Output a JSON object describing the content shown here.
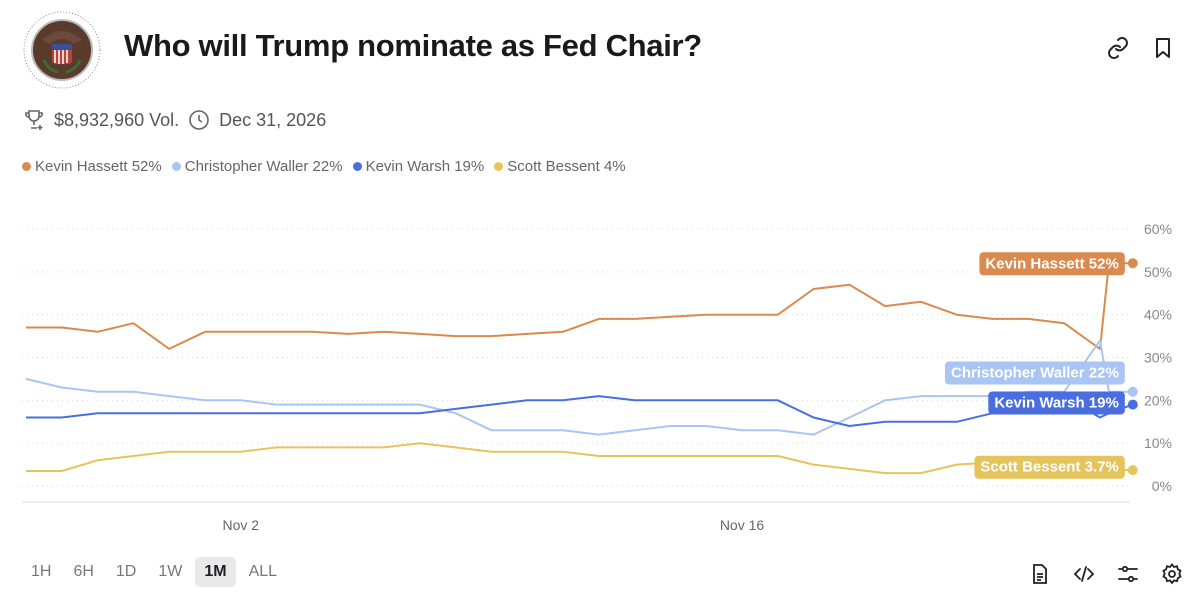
{
  "header": {
    "title": "Who will Trump nominate as Fed Chair?",
    "logo_text": "BOARD OF GOVERNORS OF THE FEDERAL RESERVE SYSTEM",
    "link_icon": "link-icon",
    "bookmark_icon": "bookmark-icon"
  },
  "meta": {
    "volume": "$8,932,960 Vol.",
    "end_date": "Dec 31, 2026",
    "trophy_icon": "trophy-icon",
    "clock_icon": "clock-icon"
  },
  "legend": [
    {
      "label": "Kevin Hassett 52%",
      "color": "#d98a4e"
    },
    {
      "label": "Christopher Waller 22%",
      "color": "#a9c5f3"
    },
    {
      "label": "Kevin Warsh 19%",
      "color": "#4a6ee0"
    },
    {
      "label": "Scott Bessent 4%",
      "color": "#e6c45c"
    }
  ],
  "chart_data": {
    "type": "line",
    "x": [
      "Oct 27",
      "Oct 28",
      "Oct 29",
      "Oct 30",
      "Oct 31",
      "Nov 1",
      "Nov 2",
      "Nov 3",
      "Nov 4",
      "Nov 5",
      "Nov 6",
      "Nov 7",
      "Nov 8",
      "Nov 9",
      "Nov 10",
      "Nov 11",
      "Nov 12",
      "Nov 13",
      "Nov 14",
      "Nov 15",
      "Nov 16",
      "Nov 17",
      "Nov 18",
      "Nov 19",
      "Nov 20",
      "Nov 21",
      "Nov 22",
      "Nov 23",
      "Nov 24",
      "Nov 25",
      "Nov 26",
      "Nov 26 06:00",
      "Nov 26 22:00"
    ],
    "series": [
      {
        "name": "Kevin Hassett",
        "end_label": "Kevin Hassett 52%",
        "color": "#d98a4e",
        "values": [
          37,
          37,
          36,
          38,
          32,
          36,
          36,
          36,
          36,
          35.5,
          36,
          35.5,
          35,
          35,
          35.5,
          36,
          39,
          39,
          39.5,
          40,
          40,
          40,
          46,
          47,
          42,
          43,
          40,
          39,
          39,
          38,
          32,
          52,
          52
        ]
      },
      {
        "name": "Christopher Waller",
        "end_label": "Christopher Waller 22%",
        "color": "#a9c5f3",
        "values": [
          25,
          23,
          22,
          22,
          21,
          20,
          20,
          19,
          19,
          19,
          19,
          19,
          17,
          13,
          13,
          13,
          12,
          13,
          14,
          14,
          13,
          13,
          12,
          16,
          20,
          21,
          21,
          21,
          22,
          22,
          34,
          22,
          22
        ]
      },
      {
        "name": "Kevin Warsh",
        "end_label": "Kevin Warsh 19%",
        "color": "#4a6ee0",
        "values": [
          16,
          16,
          17,
          17,
          17,
          17,
          17,
          17,
          17,
          17,
          17,
          17,
          18,
          19,
          20,
          20,
          21,
          20,
          20,
          20,
          20,
          20,
          16,
          14,
          15,
          15,
          15,
          17,
          21,
          21,
          16,
          17,
          19
        ]
      },
      {
        "name": "Scott Bessent",
        "end_label": "Scott Bessent 3.7%",
        "color": "#e6c45c",
        "values": [
          3.5,
          3.5,
          6,
          7,
          8,
          8,
          8,
          9,
          9,
          9,
          9,
          10,
          9,
          8,
          8,
          8,
          7,
          7,
          7,
          7,
          7,
          7,
          5,
          4,
          3,
          3,
          5,
          5.5,
          5.5,
          5.5,
          5.5,
          4,
          3.7
        ]
      }
    ],
    "x_ticks": [
      "Nov 2",
      "Nov 16"
    ],
    "y_ticks": [
      "0%",
      "10%",
      "20%",
      "30%",
      "40%",
      "50%",
      "60%"
    ],
    "ylim": [
      0,
      60
    ],
    "y_axis_position": "right",
    "grid": "horizontal dotted"
  },
  "ranges": {
    "options": [
      "1H",
      "6H",
      "1D",
      "1W",
      "1M",
      "ALL"
    ],
    "selected": "1M"
  },
  "tools": [
    "document-icon",
    "code-icon",
    "sliders-icon",
    "gear-icon"
  ]
}
